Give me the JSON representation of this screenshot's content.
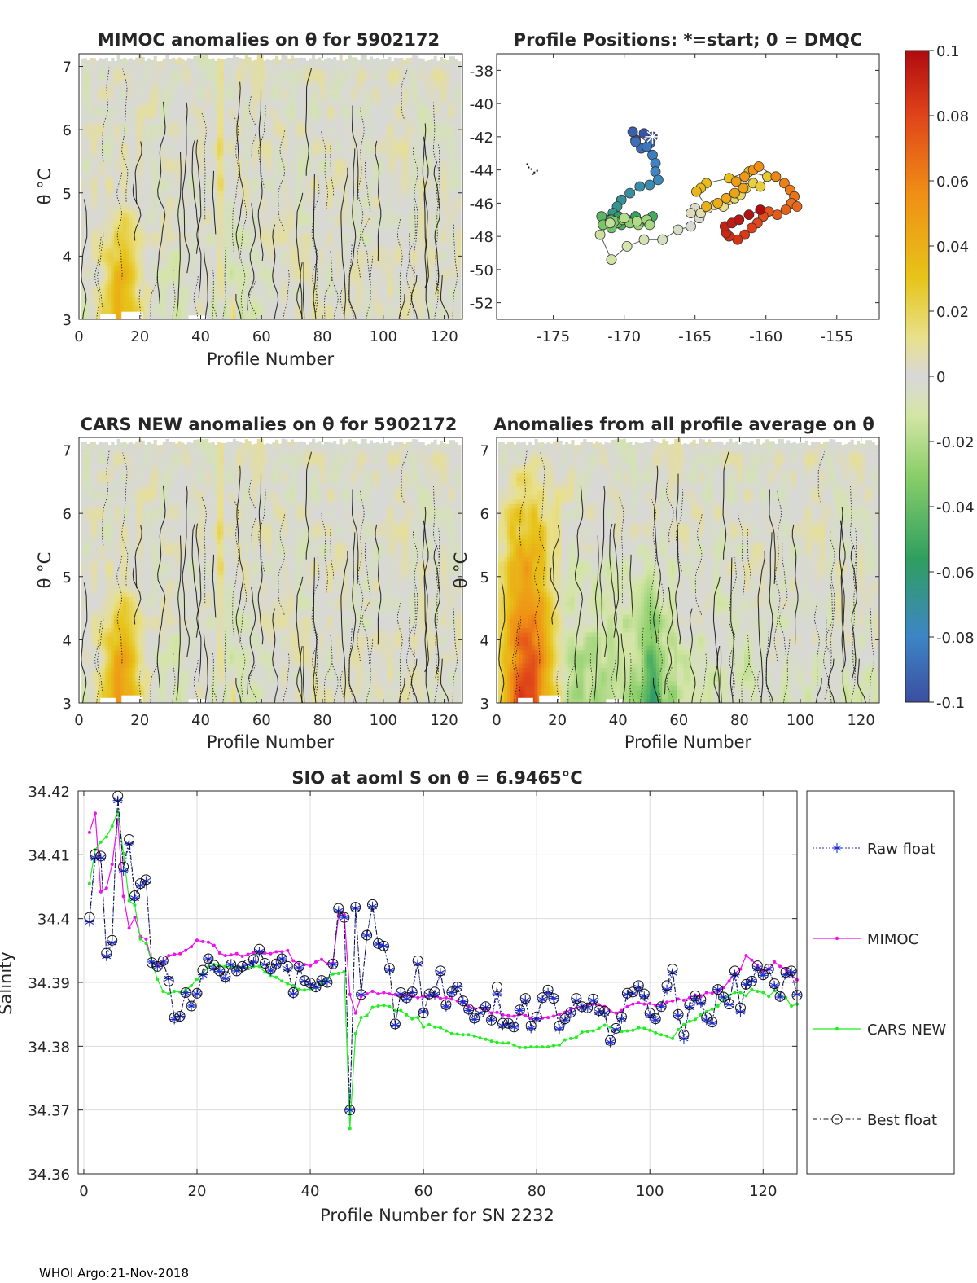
{
  "footer": "WHOI Argo:21-Nov-2018",
  "colorbar": {
    "ticks": [
      "0.1",
      "0.08",
      "0.06",
      "0.04",
      "0.02",
      "0",
      "-0.02",
      "-0.04",
      "-0.06",
      "-0.08",
      "-0.1"
    ],
    "stops": [
      "#3b4ea0",
      "#3d85c6",
      "#2f9f5f",
      "#8ccf6a",
      "#d4e5a6",
      "#d8d8d8",
      "#e8e08a",
      "#e7c419",
      "#f08f15",
      "#e0441a",
      "#b00b10"
    ]
  },
  "chart_data": [
    {
      "id": "mimoc",
      "type": "heatmap",
      "title": "MIMOC anomalies on θ  for 5902172",
      "xlabel": "Profile Number",
      "ylabel": "θ °C",
      "xlim": [
        0,
        126
      ],
      "ylim": [
        3,
        7.2
      ],
      "xticks": [
        "0",
        "20",
        "40",
        "60",
        "80",
        "100",
        "120"
      ],
      "yticks": [
        "3",
        "4",
        "5",
        "6",
        "7"
      ]
    },
    {
      "id": "positions",
      "type": "scatter",
      "title": "Profile Positions: *=start; 0 = DMQC",
      "xlim": [
        -179,
        -152
      ],
      "ylim": [
        -53,
        -37
      ],
      "xticks": [
        "-175",
        "-170",
        "-165",
        "-160",
        "-155"
      ],
      "yticks": [
        "-38",
        "-40",
        "-42",
        "-44",
        "-46",
        "-48",
        "-50",
        "-52"
      ],
      "start": [
        -168,
        -42
      ],
      "x": [
        -168,
        -168.6,
        -169.2,
        -169.4,
        -168.2,
        -168.8,
        -169.2,
        -168.4,
        -168.0,
        -167.8,
        -167.8,
        -167.6,
        -168.2,
        -168.9,
        -169.6,
        -170.2,
        -170.5,
        -170.8,
        -171.0,
        -171.3,
        -170.4,
        -169.8,
        -169.2,
        -168.6,
        -168.0,
        -170.2,
        -171.0,
        -171.6,
        -170.9,
        -170.5,
        -170.9,
        -171.5,
        -170.7,
        -170.1,
        -169.6,
        -169.0,
        -168.4,
        -168.2,
        -169.1,
        -170.0,
        -171.0,
        -171.7,
        -170.9,
        -169.8,
        -168.6,
        -167.3,
        -166.2,
        -165.3,
        -164.7,
        -165.0,
        -165.3,
        -164.6,
        -164.1,
        -163.6,
        -163.0,
        -162.6,
        -162.2,
        -161.8,
        -161.4,
        -160.9,
        -160.4,
        -159.9,
        -161.2,
        -162.6,
        -164.2,
        -164.6,
        -164.9,
        -164.2,
        -163.4,
        -162.8,
        -162.2,
        -161.6,
        -162.1,
        -161.5,
        -160.9,
        -160.5,
        -159.3,
        -158.7,
        -158.3,
        -158.0,
        -158.2,
        -157.8,
        -158.6,
        -159.2,
        -159.8,
        -160.2,
        -160.6,
        -161.0,
        -161.5,
        -162.0,
        -162.6,
        -162.8,
        -162.9,
        -162.4,
        -161.9,
        -161.2,
        -160.4
      ],
      "y": [
        -42.0,
        -41.8,
        -42.2,
        -41.7,
        -42.4,
        -42.7,
        -42.3,
        -42.6,
        -43.1,
        -43.6,
        -44.1,
        -44.6,
        -44.9,
        -45.0,
        -45.4,
        -45.8,
        -46.2,
        -46.6,
        -47.0,
        -47.2,
        -46.8,
        -47.0,
        -46.8,
        -47.1,
        -46.8,
        -47.3,
        -47.0,
        -46.8,
        -47.0,
        -47.2,
        -47.5,
        -47.3,
        -47.1,
        -47.0,
        -47.2,
        -47.3,
        -47.0,
        -47.3,
        -47.1,
        -46.9,
        -47.2,
        -47.9,
        -49.4,
        -48.6,
        -48.2,
        -48.2,
        -47.6,
        -47.4,
        -46.9,
        -46.3,
        -46.6,
        -46.6,
        -46.3,
        -46.1,
        -46.2,
        -45.8,
        -45.7,
        -45.5,
        -45.1,
        -44.8,
        -45.0,
        -44.4,
        -44.1,
        -44.5,
        -44.8,
        -45.1,
        -45.3,
        -46.2,
        -46.0,
        -45.7,
        -45.4,
        -45.1,
        -44.7,
        -44.4,
        -44.0,
        -43.8,
        -44.4,
        -44.8,
        -45.2,
        -45.6,
        -46.0,
        -46.2,
        -46.4,
        -46.7,
        -46.5,
        -46.8,
        -47.2,
        -47.5,
        -47.9,
        -48.2,
        -48.0,
        -47.8,
        -47.4,
        -47.2,
        -47.0,
        -46.7,
        -46.4
      ],
      "stray": [
        [
          -176.9,
          -43.6
        ],
        [
          -176.6,
          -43.9
        ],
        [
          -176.4,
          -44.1
        ],
        [
          -176.2,
          -44.0
        ],
        [
          -176.8,
          -43.8
        ],
        [
          -176.5,
          -44.2
        ]
      ]
    },
    {
      "id": "cars",
      "type": "heatmap",
      "title": "CARS NEW anomalies on θ for 5902172",
      "xlabel": "Profile Number",
      "ylabel": "θ °C",
      "xlim": [
        0,
        126
      ],
      "ylim": [
        3,
        7.2
      ],
      "xticks": [
        "0",
        "20",
        "40",
        "60",
        "80",
        "100",
        "120"
      ],
      "yticks": [
        "3",
        "4",
        "5",
        "6",
        "7"
      ]
    },
    {
      "id": "avg",
      "type": "heatmap",
      "title": "Anomalies from all profile average on θ",
      "xlabel": "Profile Number",
      "ylabel": "θ °C",
      "xlim": [
        0,
        126
      ],
      "ylim": [
        3,
        7.2
      ],
      "xticks": [
        "0",
        "20",
        "40",
        "60",
        "80",
        "100",
        "120"
      ],
      "yticks": [
        "3",
        "4",
        "5",
        "6",
        "7"
      ]
    },
    {
      "id": "salinity",
      "type": "line",
      "title": "SIO at aoml S on θ = 6.9465°C",
      "xlabel": "Profile Number for SN 2232",
      "ylabel": "Salinity",
      "xlim": [
        -1,
        126
      ],
      "ylim": [
        34.36,
        34.42
      ],
      "xticks": [
        "0",
        "20",
        "40",
        "60",
        "80",
        "100",
        "120"
      ],
      "yticks": [
        "34.42",
        "34.41",
        "34.4",
        "34.39",
        "34.38",
        "34.37",
        "34.36"
      ],
      "legend": [
        "Raw float",
        "MIMOC",
        "CARS NEW",
        "Best float"
      ],
      "raw": [
        34.3995,
        34.4095,
        34.4095,
        34.3941,
        34.3962,
        34.4185,
        34.4075,
        34.4117,
        34.4032,
        34.4052,
        34.4059,
        34.3932,
        34.3925,
        34.3932,
        34.3906,
        34.3842,
        34.3847,
        34.3884,
        34.3863,
        34.3882,
        34.3912,
        34.3937,
        34.3922,
        34.3917,
        34.3906,
        34.3928,
        34.3918,
        34.3923,
        34.3928,
        34.3932,
        34.3948,
        34.3928,
        34.3918,
        34.3927,
        34.3937,
        34.3921,
        34.3882,
        34.3923,
        34.3902,
        34.3897,
        34.3892,
        34.3902,
        34.3901,
        34.3928,
        34.4012,
        34.4002,
        34.37,
        34.4016,
        34.3881,
        34.3974,
        34.4019,
        34.396,
        34.3957,
        34.3919,
        34.3833,
        34.3882,
        34.3874,
        34.3884,
        34.3929,
        34.3854,
        34.388,
        34.3881,
        34.3915,
        34.3862,
        34.3884,
        34.3893,
        34.387,
        34.3856,
        34.3842,
        34.3852,
        34.3861,
        34.3841,
        34.3882,
        34.3832,
        34.3835,
        34.383,
        34.3856,
        34.3872,
        34.3828,
        34.3843,
        34.3873,
        34.3884,
        34.3875,
        34.3827,
        34.3841,
        34.3852,
        34.3872,
        34.386,
        34.386,
        34.3872,
        34.3853,
        34.3852,
        34.3806,
        34.3826,
        34.3843,
        34.3881,
        34.3882,
        34.3892,
        34.3878,
        34.3848,
        34.3841,
        34.3862,
        34.3889,
        34.3915,
        34.3848,
        34.3812,
        34.3861,
        34.3875,
        34.3868,
        34.3841,
        34.3836,
        34.3889,
        34.3877,
        34.3865,
        34.3912,
        34.3854,
        34.3897,
        34.3902,
        34.3922,
        34.3911,
        34.3921,
        34.3895,
        34.3877,
        34.3912,
        34.3916,
        34.3881
      ],
      "mimoc": [
        34.4135,
        34.4165,
        34.4042,
        34.4048,
        34.4085,
        34.4155,
        34.4035,
        34.3985,
        34.4002,
        34.3972,
        34.3968,
        34.3932,
        34.3928,
        34.393,
        34.3942,
        34.3944,
        34.3945,
        34.395,
        34.3956,
        34.3966,
        34.3964,
        34.3963,
        34.3958,
        34.3946,
        34.3942,
        34.3943,
        34.3945,
        34.3941,
        34.3944,
        34.3947,
        34.3948,
        34.3946,
        34.3945,
        34.3948,
        34.3948,
        34.395,
        34.3934,
        34.3929,
        34.3928,
        34.3926,
        34.3932,
        34.3936,
        34.3929,
        34.393,
        34.4005,
        34.4006,
        34.3881,
        34.3852,
        34.3878,
        34.3882,
        34.3886,
        34.3882,
        34.3884,
        34.3882,
        34.3881,
        34.3878,
        34.388,
        34.3878,
        34.3876,
        34.3878,
        34.3879,
        34.3878,
        34.3875,
        34.3876,
        34.3874,
        34.3871,
        34.3868,
        34.3862,
        34.3859,
        34.386,
        34.3859,
        34.3852,
        34.3853,
        34.3849,
        34.3848,
        34.3847,
        34.385,
        34.3848,
        34.3844,
        34.3842,
        34.3844,
        34.3845,
        34.3847,
        34.385,
        34.3853,
        34.3857,
        34.386,
        34.3862,
        34.3864,
        34.3866,
        34.3865,
        34.3862,
        34.3855,
        34.3852,
        34.3856,
        34.3862,
        34.3866,
        34.3868,
        34.3866,
        34.3867,
        34.3864,
        34.3865,
        34.3869,
        34.3871,
        34.3874,
        34.3872,
        34.3876,
        34.388,
        34.3878,
        34.3884,
        34.3883,
        34.3886,
        34.3892,
        34.3902,
        34.3914,
        34.3921,
        34.3942,
        34.3935,
        34.3926,
        34.3918,
        34.3921,
        34.3932,
        34.3925,
        34.3921,
        34.3912,
        34.3904
      ],
      "cars": [
        34.4055,
        34.4108,
        34.412,
        34.4128,
        34.4145,
        34.4168,
        34.4102,
        34.4028,
        34.4021,
        34.3968,
        34.3961,
        34.3932,
        34.3905,
        34.3886,
        34.3882,
        34.3886,
        34.3885,
        34.3888,
        34.3895,
        34.3905,
        34.3914,
        34.3924,
        34.3928,
        34.3926,
        34.3925,
        34.3924,
        34.3923,
        34.3924,
        34.3923,
        34.3925,
        34.3925,
        34.3916,
        34.3911,
        34.3908,
        34.3902,
        34.3898,
        34.3895,
        34.3889,
        34.3888,
        34.389,
        34.3892,
        34.3899,
        34.3905,
        34.3913,
        34.3914,
        34.3917,
        34.3671,
        34.382,
        34.3845,
        34.3848,
        34.3861,
        34.3863,
        34.3864,
        34.3862,
        34.3856,
        34.3856,
        34.3849,
        34.3843,
        34.3845,
        34.383,
        34.3834,
        34.383,
        34.3829,
        34.3824,
        34.382,
        34.3819,
        34.3818,
        34.3818,
        34.3816,
        34.3813,
        34.3811,
        34.3808,
        34.3806,
        34.3805,
        34.3805,
        34.3802,
        34.3798,
        34.3798,
        34.3799,
        34.3799,
        34.3799,
        34.3799,
        34.3801,
        34.3802,
        34.381,
        34.3812,
        34.3814,
        34.3822,
        34.3823,
        34.3824,
        34.3828,
        34.3833,
        34.383,
        34.3826,
        34.3823,
        34.3824,
        34.3825,
        34.3829,
        34.3828,
        34.3825,
        34.3821,
        34.3818,
        34.3816,
        34.3812,
        34.3826,
        34.3834,
        34.3839,
        34.3842,
        34.3849,
        34.3854,
        34.3858,
        34.3863,
        34.3873,
        34.388,
        34.3884,
        34.3884,
        34.3879,
        34.3889,
        34.3886,
        34.3884,
        34.3878,
        34.3887,
        34.3879,
        34.3876,
        34.3863,
        34.3866
      ],
      "best": [
        34.4002,
        34.4101,
        34.4098,
        34.3946,
        34.3966,
        34.4192,
        34.4081,
        34.4124,
        34.4036,
        34.4055,
        34.4061,
        34.3931,
        34.3925,
        34.3934,
        34.3902,
        34.3845,
        34.3847,
        34.3884,
        34.3863,
        34.3883,
        34.3919,
        34.3937,
        34.3927,
        34.3918,
        34.3909,
        34.3928,
        34.3918,
        34.3925,
        34.3928,
        34.3936,
        34.3952,
        34.393,
        34.3921,
        34.3929,
        34.3937,
        34.3925,
        34.3884,
        34.3925,
        34.3903,
        34.3899,
        34.3893,
        34.3903,
        34.39,
        34.3929,
        34.4016,
        34.4002,
        34.37,
        34.4018,
        34.3881,
        34.3974,
        34.4022,
        34.3961,
        34.3957,
        34.3922,
        34.3835,
        34.3884,
        34.3876,
        34.3885,
        34.3934,
        34.3852,
        34.3882,
        34.3885,
        34.3918,
        34.3865,
        34.3885,
        34.3893,
        34.3871,
        34.3858,
        34.3844,
        34.3853,
        34.3862,
        34.3841,
        34.3893,
        34.3836,
        34.3836,
        34.383,
        34.3857,
        34.3875,
        34.3832,
        34.3846,
        34.3876,
        34.3888,
        34.3875,
        34.3832,
        34.3843,
        34.3853,
        34.3875,
        34.3862,
        34.386,
        34.3874,
        34.3856,
        34.3855,
        34.3809,
        34.3828,
        34.3846,
        34.3883,
        34.3885,
        34.3895,
        34.3882,
        34.3852,
        34.3843,
        34.3862,
        34.3895,
        34.3921,
        34.385,
        34.3818,
        34.3865,
        34.3879,
        34.3873,
        34.3845,
        34.3838,
        34.3889,
        34.3877,
        34.3866,
        34.3918,
        34.386,
        34.3897,
        34.3902,
        34.3926,
        34.3912,
        34.3921,
        34.3898,
        34.3878,
        34.3916,
        34.3918,
        34.388
      ]
    }
  ]
}
